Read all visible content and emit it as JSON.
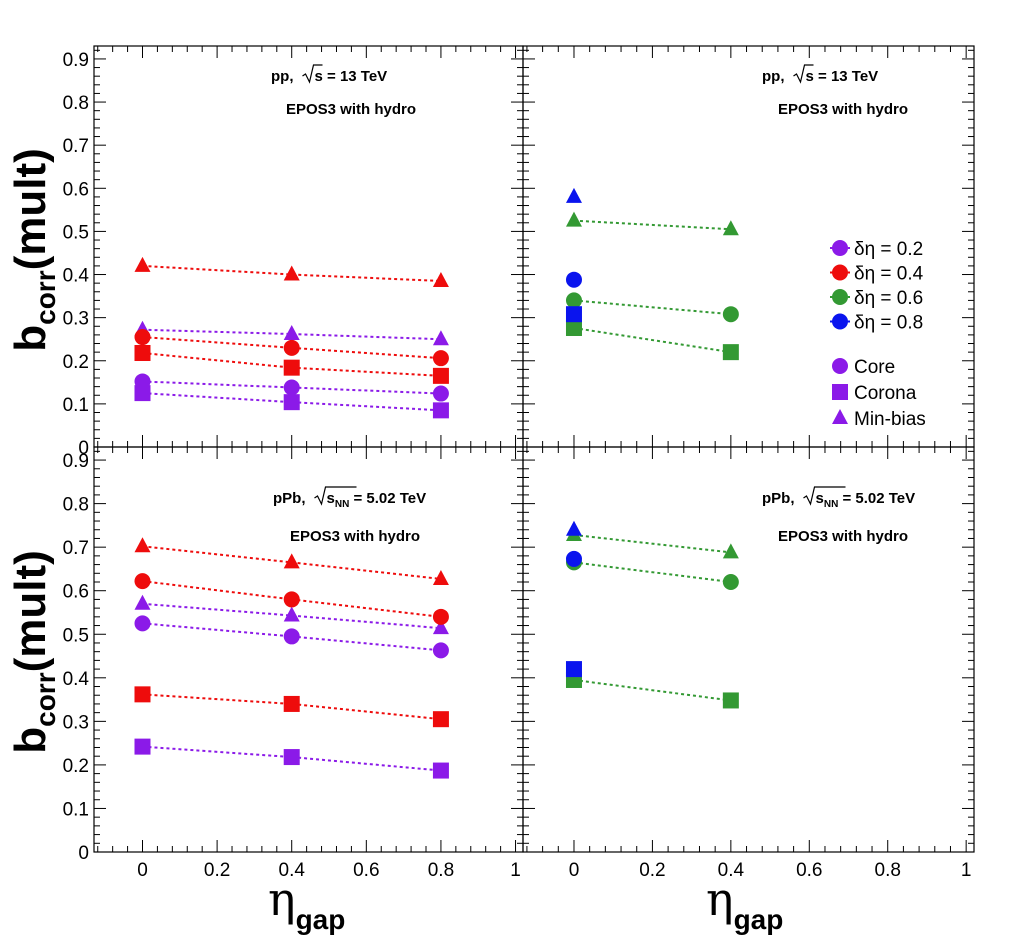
{
  "colors": {
    "d02": "#8b1ae8",
    "d04": "#ee0c0c",
    "d06": "#339933",
    "d08": "#0a14ee"
  },
  "ylabel": {
    "main": "b",
    "sub": "corr",
    "tail": "(mult)"
  },
  "xlabel": {
    "main": "η",
    "sub": "gap"
  },
  "legend": {
    "widths": [
      {
        "key": "d02",
        "label": "δη = 0.2"
      },
      {
        "key": "d04",
        "label": "δη = 0.4"
      },
      {
        "key": "d06",
        "label": "δη = 0.6"
      },
      {
        "key": "d08",
        "label": "δη = 0.8"
      }
    ],
    "types": [
      {
        "marker": "circle",
        "label": "Core"
      },
      {
        "marker": "square",
        "label": "Corona"
      },
      {
        "marker": "triangle",
        "label": "Min-bias"
      }
    ]
  },
  "chart_data": [
    {
      "panel": "top-left",
      "type": "scatter",
      "system": "pp",
      "energy_prefix": "s",
      "energy_sub": "",
      "energy_value": " = 13 TeV",
      "model": "EPOS3 with hydro",
      "x_ticks": [],
      "y_ticks": [
        "0",
        "0.1",
        "0.2",
        "0.3",
        "0.4",
        "0.5",
        "0.6",
        "0.7",
        "0.8",
        "0.9"
      ],
      "xlim": [
        -0.13,
        1.02
      ],
      "ylim": [
        0,
        0.93
      ],
      "series": [
        {
          "name": "δη = 0.2 Core",
          "color": "d02",
          "marker": "circle",
          "line": true,
          "x": [
            0,
            0.4,
            0.8
          ],
          "y": [
            0.152,
            0.138,
            0.124
          ]
        },
        {
          "name": "δη = 0.2 Corona",
          "color": "d02",
          "marker": "square",
          "line": true,
          "x": [
            0,
            0.4,
            0.8
          ],
          "y": [
            0.125,
            0.104,
            0.085
          ]
        },
        {
          "name": "δη = 0.2 Min-bias",
          "color": "d02",
          "marker": "triangle",
          "line": true,
          "x": [
            0,
            0.4,
            0.8
          ],
          "y": [
            0.272,
            0.262,
            0.25
          ]
        },
        {
          "name": "δη = 0.4 Core",
          "color": "d04",
          "marker": "circle",
          "line": true,
          "x": [
            0,
            0.4,
            0.8
          ],
          "y": [
            0.255,
            0.23,
            0.206
          ]
        },
        {
          "name": "δη = 0.4 Corona",
          "color": "d04",
          "marker": "square",
          "line": true,
          "x": [
            0,
            0.4,
            0.8
          ],
          "y": [
            0.218,
            0.184,
            0.165
          ]
        },
        {
          "name": "δη = 0.4 Min-bias",
          "color": "d04",
          "marker": "triangle",
          "line": true,
          "x": [
            0,
            0.4,
            0.8
          ],
          "y": [
            0.42,
            0.4,
            0.385
          ]
        }
      ]
    },
    {
      "panel": "top-right",
      "type": "scatter",
      "system": "pp",
      "energy_prefix": "s",
      "energy_sub": "",
      "energy_value": " = 13 TeV",
      "model": "EPOS3 with hydro",
      "x_ticks": [],
      "y_ticks": [],
      "xlim": [
        -0.13,
        1.02
      ],
      "ylim": [
        0,
        0.93
      ],
      "series": [
        {
          "name": "δη = 0.6 Core",
          "color": "d06",
          "marker": "circle",
          "line": true,
          "x": [
            0,
            0.4
          ],
          "y": [
            0.34,
            0.308
          ]
        },
        {
          "name": "δη = 0.6 Corona",
          "color": "d06",
          "marker": "square",
          "line": true,
          "x": [
            0,
            0.4
          ],
          "y": [
            0.276,
            0.22
          ]
        },
        {
          "name": "δη = 0.6 Min-bias",
          "color": "d06",
          "marker": "triangle",
          "line": true,
          "x": [
            0,
            0.4
          ],
          "y": [
            0.525,
            0.505
          ]
        },
        {
          "name": "δη = 0.8 Core",
          "color": "d08",
          "marker": "circle",
          "line": false,
          "x": [
            0
          ],
          "y": [
            0.388
          ]
        },
        {
          "name": "δη = 0.8 Corona",
          "color": "d08",
          "marker": "square",
          "line": false,
          "x": [
            0
          ],
          "y": [
            0.308
          ]
        },
        {
          "name": "δη = 0.8 Min-bias",
          "color": "d08",
          "marker": "triangle",
          "line": false,
          "x": [
            0
          ],
          "y": [
            0.58
          ]
        }
      ]
    },
    {
      "panel": "bottom-left",
      "type": "scatter",
      "system": "pPb",
      "energy_prefix": "s",
      "energy_sub": "NN",
      "energy_value": " = 5.02 TeV",
      "model": "EPOS3 with hydro",
      "x_ticks": [
        "0",
        "0.2",
        "0.4",
        "0.6",
        "0.8",
        "1"
      ],
      "y_ticks": [
        "0",
        "0.1",
        "0.2",
        "0.3",
        "0.4",
        "0.5",
        "0.6",
        "0.7",
        "0.8",
        "0.9"
      ],
      "xlim": [
        -0.13,
        1.02
      ],
      "ylim": [
        0,
        0.93
      ],
      "series": [
        {
          "name": "δη = 0.2 Core",
          "color": "d02",
          "marker": "circle",
          "line": true,
          "x": [
            0,
            0.4,
            0.8
          ],
          "y": [
            0.525,
            0.495,
            0.463
          ]
        },
        {
          "name": "δη = 0.2 Corona",
          "color": "d02",
          "marker": "square",
          "line": true,
          "x": [
            0,
            0.4,
            0.8
          ],
          "y": [
            0.242,
            0.218,
            0.187
          ]
        },
        {
          "name": "δη = 0.2 Min-bias",
          "color": "d02",
          "marker": "triangle",
          "line": true,
          "x": [
            0,
            0.4,
            0.8
          ],
          "y": [
            0.57,
            0.543,
            0.514
          ]
        },
        {
          "name": "δη = 0.4 Core",
          "color": "d04",
          "marker": "circle",
          "line": true,
          "x": [
            0,
            0.4,
            0.8
          ],
          "y": [
            0.622,
            0.58,
            0.54
          ]
        },
        {
          "name": "δη = 0.4 Corona",
          "color": "d04",
          "marker": "square",
          "line": true,
          "x": [
            0,
            0.4,
            0.8
          ],
          "y": [
            0.362,
            0.34,
            0.305
          ]
        },
        {
          "name": "δη = 0.4 Min-bias",
          "color": "d04",
          "marker": "triangle",
          "line": true,
          "x": [
            0,
            0.4,
            0.8
          ],
          "y": [
            0.702,
            0.665,
            0.627
          ]
        }
      ]
    },
    {
      "panel": "bottom-right",
      "type": "scatter",
      "system": "pPb",
      "energy_prefix": "s",
      "energy_sub": "NN",
      "energy_value": " = 5.02 TeV",
      "model": "EPOS3 with hydro",
      "x_ticks": [
        "0",
        "0.2",
        "0.4",
        "0.6",
        "0.8",
        "1"
      ],
      "y_ticks": [],
      "xlim": [
        -0.13,
        1.02
      ],
      "ylim": [
        0,
        0.93
      ],
      "series": [
        {
          "name": "δη = 0.6 Core",
          "color": "d06",
          "marker": "circle",
          "line": true,
          "x": [
            0,
            0.4
          ],
          "y": [
            0.665,
            0.62
          ]
        },
        {
          "name": "δη = 0.6 Corona",
          "color": "d06",
          "marker": "square",
          "line": true,
          "x": [
            0,
            0.4
          ],
          "y": [
            0.395,
            0.348
          ]
        },
        {
          "name": "δη = 0.6 Min-bias",
          "color": "d06",
          "marker": "triangle",
          "line": true,
          "x": [
            0,
            0.4
          ],
          "y": [
            0.728,
            0.688
          ]
        },
        {
          "name": "δη = 0.8 Core",
          "color": "d08",
          "marker": "circle",
          "line": false,
          "x": [
            0
          ],
          "y": [
            0.673
          ]
        },
        {
          "name": "δη = 0.8 Corona",
          "color": "d08",
          "marker": "square",
          "line": false,
          "x": [
            0
          ],
          "y": [
            0.42
          ]
        },
        {
          "name": "δη = 0.8 Min-bias",
          "color": "d08",
          "marker": "triangle",
          "line": false,
          "x": [
            0
          ],
          "y": [
            0.74
          ]
        }
      ]
    }
  ]
}
